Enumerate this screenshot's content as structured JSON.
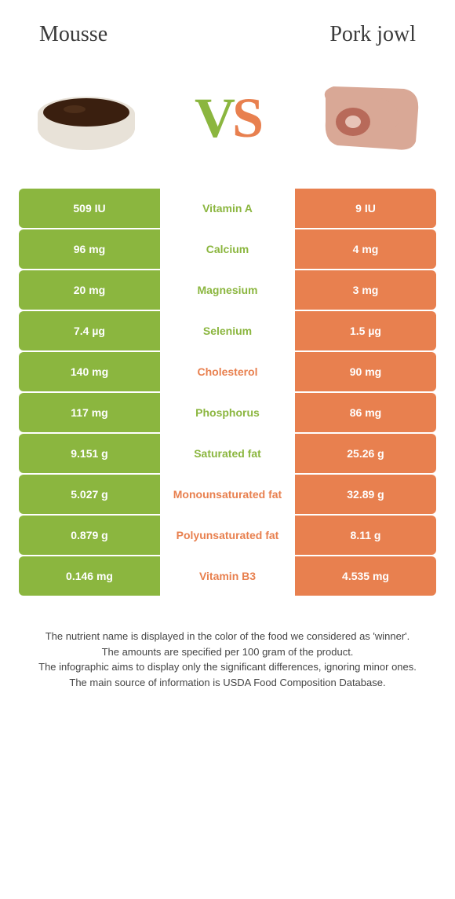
{
  "header": {
    "left": "Mousse",
    "right": "Pork jowl"
  },
  "vs": {
    "v": "V",
    "s": "S"
  },
  "colors": {
    "green": "#8bb63f",
    "orange": "#e8804f"
  },
  "rows": [
    {
      "left": "509 IU",
      "label": "Vitamin A",
      "right": "9 IU",
      "left_color": "#8bb63f",
      "right_color": "#e8804f",
      "label_color": "#8bb63f"
    },
    {
      "left": "96 mg",
      "label": "Calcium",
      "right": "4 mg",
      "left_color": "#8bb63f",
      "right_color": "#e8804f",
      "label_color": "#8bb63f"
    },
    {
      "left": "20 mg",
      "label": "Magnesium",
      "right": "3 mg",
      "left_color": "#8bb63f",
      "right_color": "#e8804f",
      "label_color": "#8bb63f"
    },
    {
      "left": "7.4 µg",
      "label": "Selenium",
      "right": "1.5 µg",
      "left_color": "#8bb63f",
      "right_color": "#e8804f",
      "label_color": "#8bb63f"
    },
    {
      "left": "140 mg",
      "label": "Cholesterol",
      "right": "90 mg",
      "left_color": "#8bb63f",
      "right_color": "#e8804f",
      "label_color": "#e8804f"
    },
    {
      "left": "117 mg",
      "label": "Phosphorus",
      "right": "86 mg",
      "left_color": "#8bb63f",
      "right_color": "#e8804f",
      "label_color": "#8bb63f"
    },
    {
      "left": "9.151 g",
      "label": "Saturated fat",
      "right": "25.26 g",
      "left_color": "#8bb63f",
      "right_color": "#e8804f",
      "label_color": "#8bb63f"
    },
    {
      "left": "5.027 g",
      "label": "Monounsaturated fat",
      "right": "32.89 g",
      "left_color": "#8bb63f",
      "right_color": "#e8804f",
      "label_color": "#e8804f"
    },
    {
      "left": "0.879 g",
      "label": "Polyunsaturated fat",
      "right": "8.11 g",
      "left_color": "#8bb63f",
      "right_color": "#e8804f",
      "label_color": "#e8804f"
    },
    {
      "left": "0.146 mg",
      "label": "Vitamin B3",
      "right": "4.535 mg",
      "left_color": "#8bb63f",
      "right_color": "#e8804f",
      "label_color": "#e8804f"
    }
  ],
  "footer": {
    "line1": "The nutrient name is displayed in the color of the food we considered as 'winner'.",
    "line2": "The amounts are specified per 100 gram of the product.",
    "line3": "The infographic aims to display only the significant differences, ignoring minor ones.",
    "line4": "The main source of information is USDA Food Composition Database."
  }
}
